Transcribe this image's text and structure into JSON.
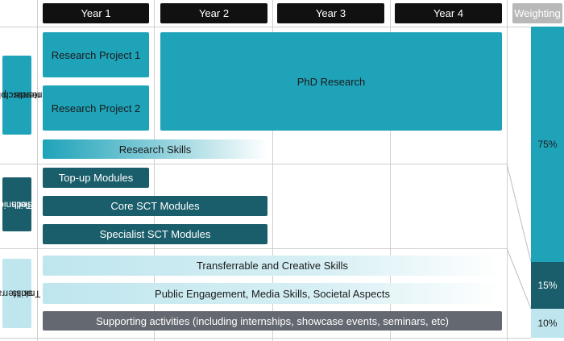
{
  "header": {
    "years": [
      "Year 1",
      "Year 2",
      "Year 3",
      "Year 4"
    ],
    "weighting_label": "Weighting"
  },
  "sections": {
    "interdisciplinary": {
      "label_lines": [
        "Interdisciplinary",
        "research"
      ],
      "items": {
        "research_project_1": "Research Project 1",
        "research_project_2": "Research Project 2",
        "phd_research": "PhD Research",
        "research_skills": "Research Skills"
      },
      "weight": "75%"
    },
    "technical": {
      "label_lines": [
        "Technical",
        "skills"
      ],
      "items": {
        "topup_modules": "Top-up Modules",
        "core_sct_modules": "Core SCT Modules",
        "specialist_sct_modules": "Specialist SCT Modules"
      },
      "weight": "15%"
    },
    "transferrable": {
      "label_lines": [
        "Transferrable",
        "skills"
      ],
      "items": {
        "transferrable_creative": "Transferrable and Creative Skills",
        "public_engagement": "Public Engagement, Media Skills, Societal Aspects",
        "supporting_activities": "Supporting activities (including internships, showcase events, seminars, etc)"
      },
      "weight": "10%"
    }
  },
  "colors": {
    "teal": "#1fa3b9",
    "dark_teal": "#1b5e6b",
    "light_teal": "#bfe6ee",
    "grey": "#646870",
    "header_black": "#111111",
    "weighting_grey": "#b8b8b8"
  }
}
